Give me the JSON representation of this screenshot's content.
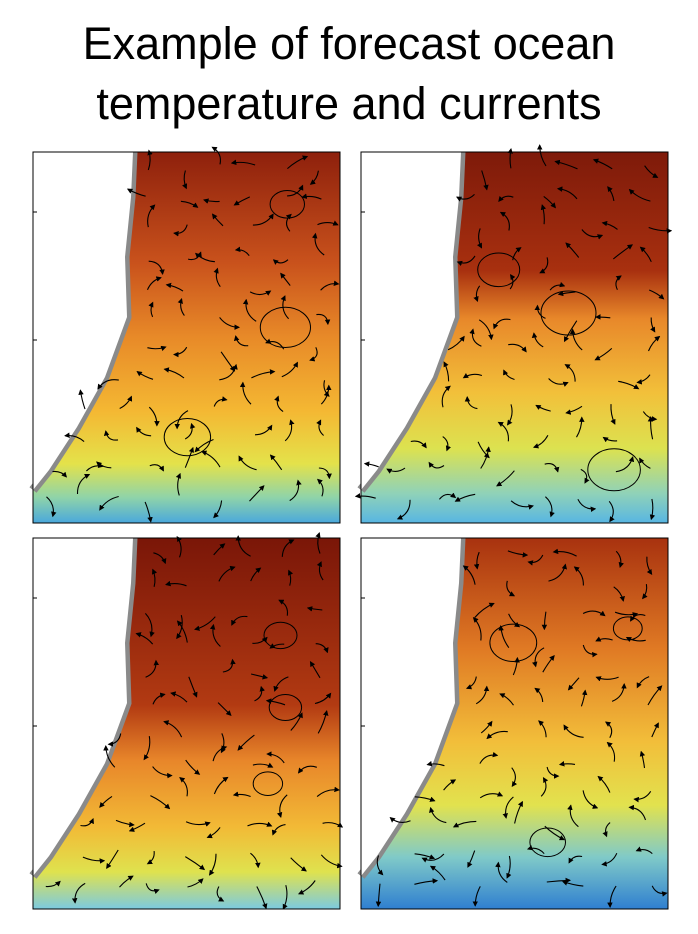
{
  "title_lines": [
    "Example of forecast ocean",
    "temperature and currents"
  ]
}
